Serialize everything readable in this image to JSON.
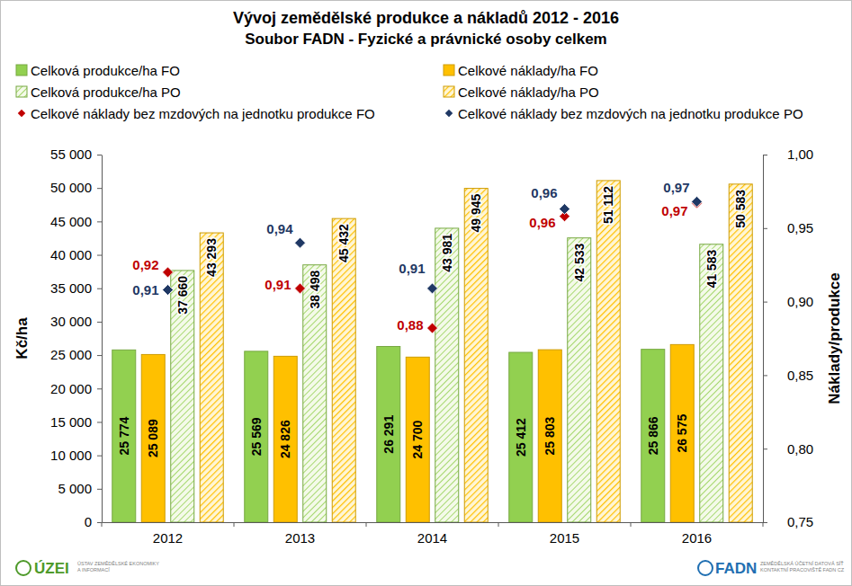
{
  "chart_data": {
    "type": "bar",
    "title": "Vývoj zemědělské produkce a nákladů 2012 - 2016",
    "subtitle": "Soubor FADN - Fyzické a právnické osoby celkem",
    "ylabel": "Kč/ha",
    "y2label": "Náklady/produkce",
    "categories": [
      "2012",
      "2013",
      "2014",
      "2015",
      "2016"
    ],
    "ylim": [
      0,
      55000
    ],
    "yticks": [
      0,
      {
        "value": 5000,
        "label": "5 000"
      },
      {
        "value": 10000,
        "label": "10 000"
      },
      {
        "value": 15000,
        "label": "15 000"
      },
      {
        "value": 20000,
        "label": "20 000"
      },
      {
        "value": 25000,
        "label": "25 000"
      },
      {
        "value": 30000,
        "label": "30 000"
      },
      {
        "value": 35000,
        "label": "35 000"
      },
      {
        "value": 40000,
        "label": "40 000"
      },
      {
        "value": 45000,
        "label": "45 000"
      },
      {
        "value": 50000,
        "label": "50 000"
      },
      {
        "value": 55000,
        "label": "55 000"
      }
    ],
    "y2lim": [
      0.75,
      1
    ],
    "y2ticks": [
      {
        "value": 0.75,
        "label": "0,75"
      },
      {
        "value": 0.8,
        "label": "0,80"
      },
      {
        "value": 0.85,
        "label": "0,85"
      },
      {
        "value": 0.9,
        "label": "0,90"
      },
      {
        "value": 0.95,
        "label": "0,95"
      },
      {
        "value": 1,
        "label": "1,00"
      }
    ],
    "grid": false,
    "legend": "top",
    "data_labels": true,
    "series": [
      {
        "name": "Celková produkce/ha FO",
        "type": "bar",
        "color": "#92D050",
        "values": [
          25774,
          25569,
          26291,
          25412,
          25866
        ],
        "value_labels": [
          "25 774",
          "25 569",
          "26 291",
          "25 412",
          "25 866"
        ]
      },
      {
        "name": "Celkové náklady/ha FO",
        "type": "bar",
        "color": "#FFC000",
        "values": [
          25089,
          24826,
          24700,
          25803,
          26575
        ],
        "value_labels": [
          "25 089",
          "24 826",
          "24 700",
          "25 803",
          "26 575"
        ]
      },
      {
        "name": "Celková produkce/ha PO",
        "type": "bar",
        "color": "#92D050",
        "values": [
          37660,
          38498,
          43981,
          42533,
          41583
        ],
        "value_labels": [
          "37 660",
          "38 498",
          "43 981",
          "42 533",
          "41 583"
        ]
      },
      {
        "name": "Celkové náklady/ha PO",
        "type": "bar",
        "color": "#FFC000",
        "values": [
          43293,
          45432,
          49945,
          51112,
          50583
        ],
        "value_labels": [
          "43 293",
          "45 432",
          "49 945",
          "51 112",
          "50 583"
        ]
      },
      {
        "name": "Celkové náklady bez mzdových na jednotku produkce FO",
        "type": "scatter",
        "marker": "diamond",
        "axis": "y2",
        "color": "#C00000",
        "values": [
          0.92,
          0.909,
          0.882,
          0.958,
          0.967
        ],
        "value_labels": [
          "0,92",
          "0,91",
          "0,88",
          "0,96",
          "0,97"
        ]
      },
      {
        "name": "Celkové náklady bez mzdových na jednotku produkce PO",
        "type": "scatter",
        "marker": "diamond",
        "axis": "y2",
        "color": "#1F3864",
        "values": [
          0.908,
          0.94,
          0.909,
          0.963,
          0.968
        ],
        "value_labels": [
          "0,91",
          "0,94",
          "0,91",
          "0,96",
          "0,97"
        ]
      }
    ],
    "annotations": [
      "ÚZEI",
      "ÚSTAV ZEMĚDĚLSKÉ EKONOMIKY",
      "A INFORMACÍ",
      "FADN",
      "ZEMĚDĚLSKÁ ÚČETNÍ DATOVÁ SÍŤ",
      "KONTAKTNÍ PRACOVIŠTĚ FADN CZ"
    ]
  }
}
